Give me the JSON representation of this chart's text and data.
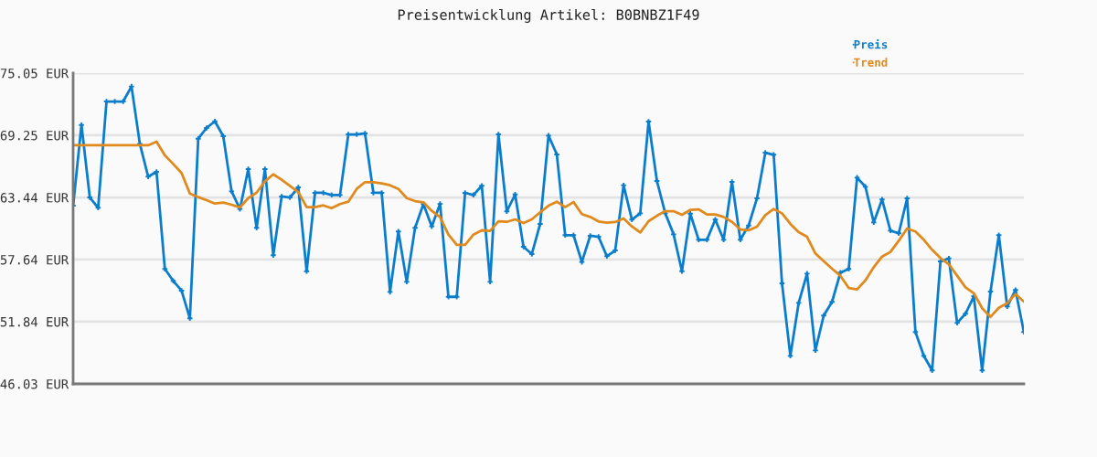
{
  "chart_data": {
    "type": "line",
    "title": "Preisentwicklung Artikel: B0BNBZ1F49",
    "categories": [
      null,
      null,
      null,
      null,
      null,
      null,
      null,
      null,
      null,
      null,
      null,
      null,
      null,
      null,
      null,
      null,
      null,
      null,
      null,
      null,
      null,
      null,
      null,
      null,
      null,
      null,
      null,
      null,
      null,
      null,
      null,
      null,
      null,
      null,
      null,
      null,
      null,
      null,
      null,
      null,
      null,
      null,
      null,
      null,
      null,
      null,
      null,
      null,
      null,
      null,
      null,
      null,
      null,
      null,
      null,
      null,
      null,
      null,
      null,
      null,
      null,
      null,
      null,
      null,
      null,
      null,
      null,
      null,
      null,
      null,
      null,
      null,
      null,
      null,
      null,
      null,
      null,
      null,
      null,
      null,
      null,
      null,
      null,
      null,
      null,
      null,
      null,
      null,
      null,
      null,
      null,
      null,
      null,
      null,
      null,
      null,
      null,
      null,
      null,
      null,
      null,
      null,
      null,
      null,
      null,
      null,
      null,
      null,
      null,
      null,
      null,
      null,
      null,
      null,
      null
    ],
    "series": [
      {
        "name": "Preis",
        "color": "#0a7dcc",
        "marker": "cross",
        "values": [
          62.67,
          70.21,
          63.44,
          62.48,
          72.4,
          72.4,
          72.4,
          73.8,
          68.45,
          65.38,
          65.83,
          56.76,
          55.65,
          54.74,
          52.15,
          68.93,
          69.93,
          70.55,
          69.16,
          64.01,
          62.36,
          66.09,
          60.6,
          66.09,
          58.04,
          63.53,
          63.44,
          64.38,
          56.55,
          63.87,
          63.87,
          63.67,
          63.67,
          69.33,
          69.33,
          69.42,
          63.87,
          63.87,
          54.62,
          60.26,
          55.56,
          60.6,
          62.82,
          60.74,
          62.84,
          54.16,
          54.16,
          63.87,
          63.67,
          64.53,
          55.56,
          69.33,
          62.14,
          63.72,
          58.83,
          58.15,
          60.97,
          69.22,
          67.45,
          59.92,
          59.92,
          57.41,
          59.86,
          59.77,
          57.95,
          58.49,
          64.58,
          61.37,
          61.96,
          70.53,
          64.98,
          61.96,
          60.0,
          56.55,
          61.93,
          59.49,
          59.49,
          61.37,
          59.49,
          64.89,
          59.49,
          60.82,
          63.36,
          67.62,
          67.43,
          55.42,
          48.65,
          53.6,
          56.33,
          49.16,
          52.41,
          53.69,
          56.42,
          56.76,
          65.29,
          64.44,
          61.11,
          63.25,
          60.34,
          60.09,
          63.36,
          50.87,
          48.65,
          47.29,
          57.47,
          57.75,
          51.72,
          52.58,
          54.2,
          47.29,
          54.65,
          59.92,
          53.26,
          54.8,
          50.87
        ]
      },
      {
        "name": "Trend",
        "color": "#e08a1e",
        "marker": "none",
        "values": [
          68.31,
          68.31,
          68.31,
          68.31,
          68.31,
          68.31,
          68.31,
          68.31,
          68.31,
          68.31,
          68.65,
          67.37,
          66.57,
          65.72,
          63.81,
          63.47,
          63.19,
          62.87,
          62.96,
          62.76,
          62.5,
          63.38,
          63.89,
          64.95,
          65.6,
          65.09,
          64.52,
          63.95,
          62.53,
          62.53,
          62.7,
          62.44,
          62.82,
          63.04,
          64.24,
          64.87,
          64.87,
          64.75,
          64.58,
          64.24,
          63.38,
          63.1,
          62.99,
          62.19,
          61.59,
          59.97,
          59.01,
          59.01,
          59.97,
          60.37,
          60.31,
          61.22,
          61.16,
          61.39,
          61.05,
          61.39,
          62.05,
          62.67,
          63.04,
          62.53,
          63.01,
          61.88,
          61.62,
          61.2,
          61.08,
          61.14,
          61.48,
          60.74,
          60.17,
          61.22,
          61.73,
          62.16,
          62.16,
          61.82,
          62.27,
          62.33,
          61.85,
          61.85,
          61.62,
          61.16,
          60.45,
          60.37,
          60.71,
          61.79,
          62.36,
          61.96,
          60.97,
          60.2,
          59.77,
          58.21,
          57.49,
          56.78,
          56.13,
          54.99,
          54.85,
          55.7,
          56.93,
          57.92,
          58.35,
          59.4,
          60.54,
          60.26,
          59.49,
          58.55,
          57.78,
          57.21,
          56.13,
          55.05,
          54.5,
          53.09,
          52.29,
          53.14,
          53.57,
          54.42,
          53.71
        ]
      }
    ],
    "ylim": [
      46.03,
      75.05
    ],
    "yticks": [
      {
        "value": 46.03,
        "label": "46.03 EUR"
      },
      {
        "value": 51.84,
        "label": "51.84 EUR"
      },
      {
        "value": 57.64,
        "label": "57.64 EUR"
      },
      {
        "value": 63.44,
        "label": "63.44 EUR"
      },
      {
        "value": 69.25,
        "label": "69.25 EUR"
      },
      {
        "value": 75.05,
        "label": "75.05 EUR"
      }
    ],
    "grid": "y",
    "legend": "top right",
    "tick_labels": "y",
    "line_style": "solid"
  }
}
